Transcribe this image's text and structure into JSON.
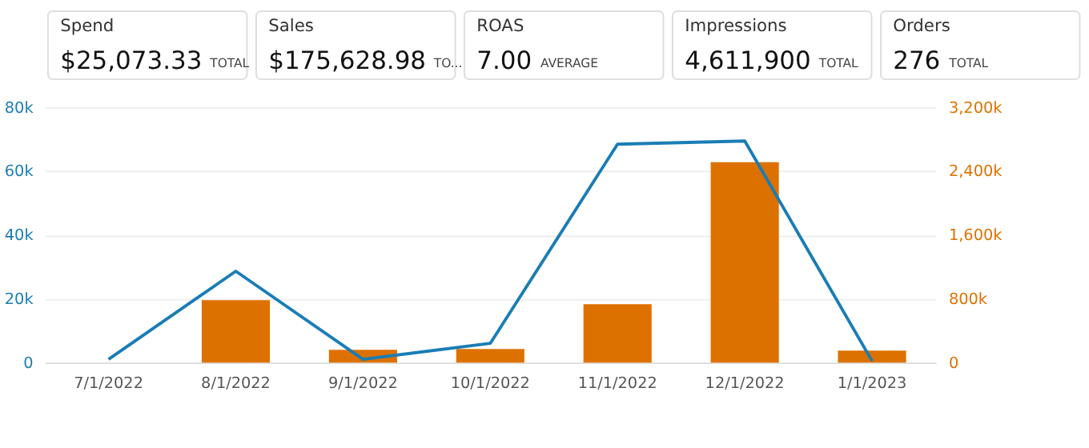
{
  "chart_data": {
    "type": "bar",
    "annotations": [
      "Spend",
      "$25,073.33",
      "TOTAL",
      "Sales",
      "$175,628.98",
      "TO...",
      "ROAS",
      "7.00",
      "AVERAGE",
      "Impressions",
      "4,611,900",
      "TOTAL",
      "Orders",
      "276",
      "TOTAL"
    ],
    "categories": [
      "7/1/2022",
      "8/1/2022",
      "9/1/2022",
      "10/1/2022",
      "11/1/2022",
      "12/1/2022",
      "1/1/2023"
    ],
    "series": [
      {
        "axis": "y2",
        "color": "#dd7100",
        "values": [
          0,
          780000,
          160000,
          170000,
          730000,
          2510000,
          150000
        ]
      },
      {
        "type": "line",
        "color": "#1a7db5",
        "values": [
          1000,
          28600,
          1000,
          6000,
          68400,
          69400,
          500
        ]
      }
    ],
    "ylim": [
      0,
      80000
    ],
    "yticks": [
      {
        "value": 0,
        "label": "0"
      },
      {
        "value": 20000,
        "label": "20k"
      },
      {
        "value": 40000,
        "label": "40k"
      },
      {
        "value": 60000,
        "label": "60k"
      },
      {
        "value": 80000,
        "label": "80k"
      }
    ],
    "y2lim": [
      0,
      3200000
    ],
    "y2ticks": [
      {
        "value": 0,
        "label": "0"
      },
      {
        "value": 800000,
        "label": "800k"
      },
      {
        "value": 1600000,
        "label": "1,600k"
      },
      {
        "value": 2400000,
        "label": "2,400k"
      },
      {
        "value": 3200000,
        "label": "3,200k"
      }
    ],
    "grid": "y"
  }
}
